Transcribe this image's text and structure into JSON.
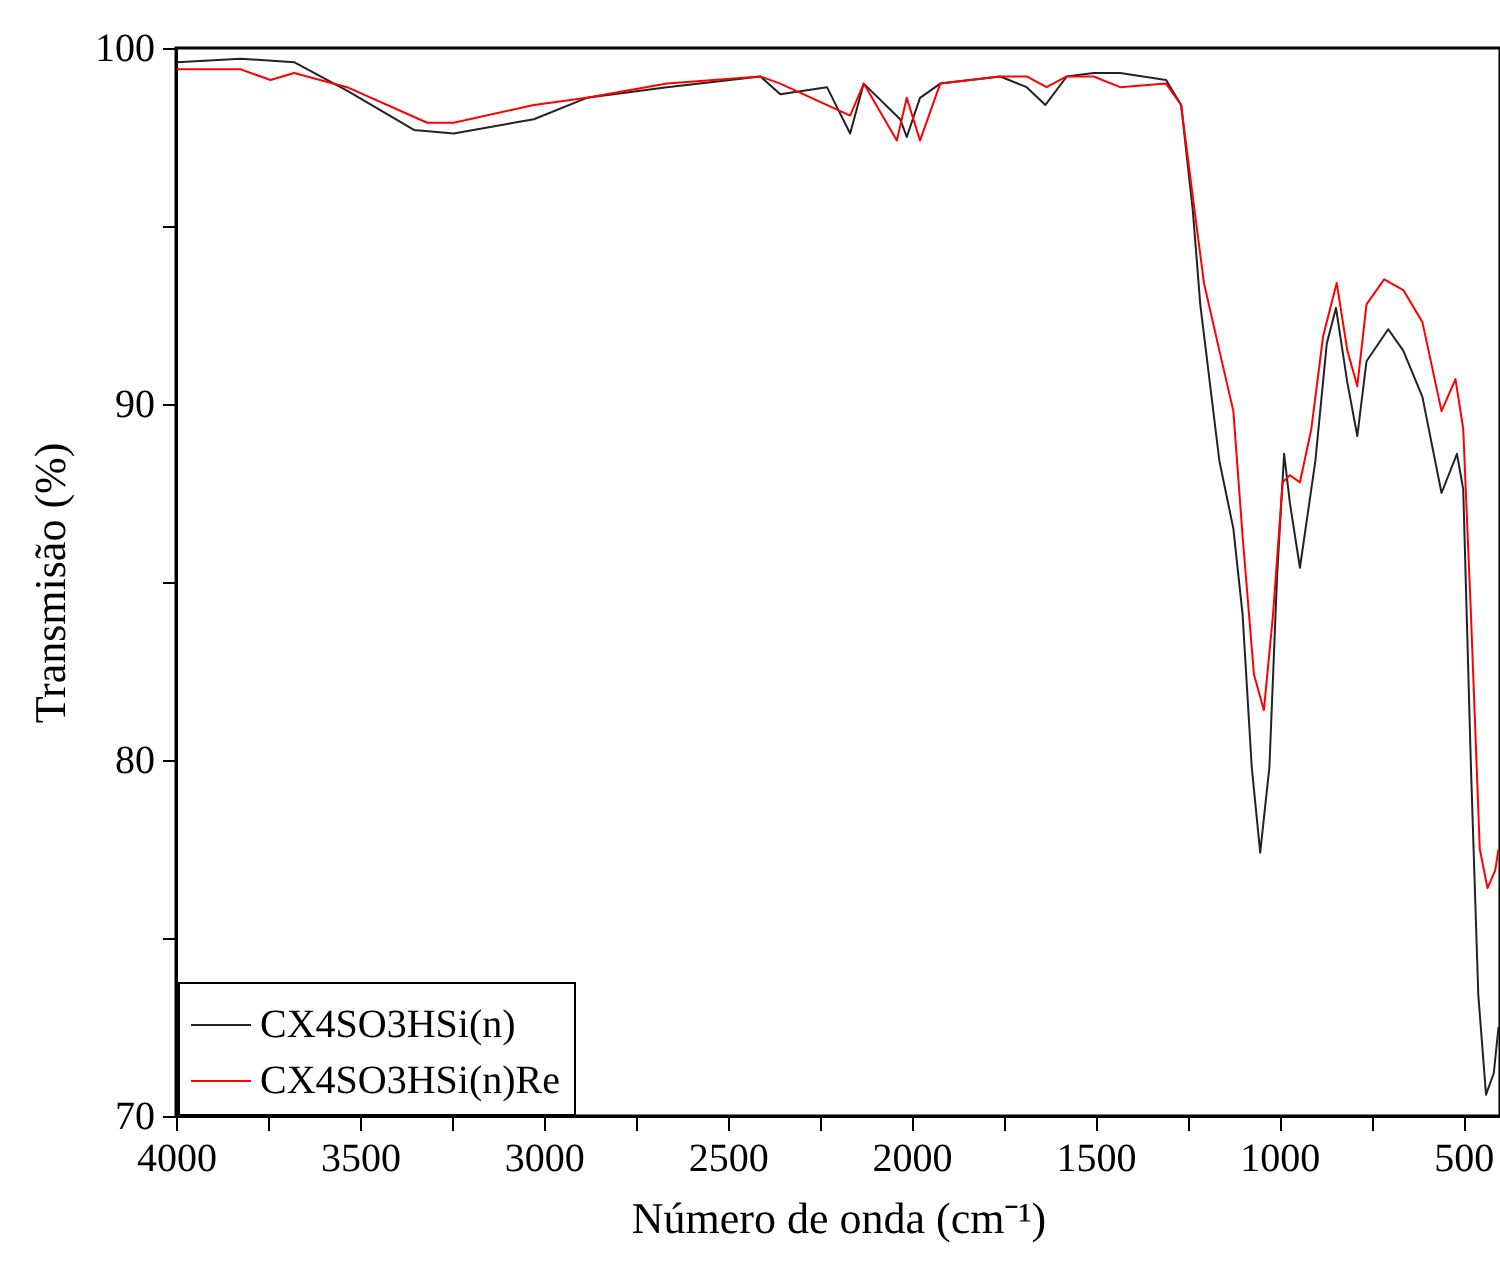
{
  "chart_data": {
    "type": "line",
    "xlabel": "Número de onda (cm⁻¹)",
    "ylabel": "Transmisão (%)",
    "xlim": [
      4000,
      400
    ],
    "ylim": [
      70,
      100
    ],
    "xticks": [
      4000,
      {
        "value": 3750,
        "label": null
      },
      3500,
      {
        "value": 3250,
        "label": null
      },
      3000,
      {
        "value": 2750,
        "label": null
      },
      2500,
      {
        "value": 2250,
        "label": null
      },
      2000,
      {
        "value": 1750,
        "label": null
      },
      1500,
      {
        "value": 1250,
        "label": null
      },
      1000,
      {
        "value": 750,
        "label": null
      },
      500
    ],
    "yticks": [
      70,
      {
        "value": 75,
        "label": null
      },
      80,
      {
        "value": 85,
        "label": null
      },
      90,
      {
        "value": 95,
        "label": null
      },
      100
    ],
    "grid": false,
    "legend": "bottom left",
    "line_style": "solid",
    "marker": "none",
    "series": [
      {
        "name": "CX4SO3HSi(n)",
        "color": "#222222",
        "x": [
          3997,
          3824,
          3679,
          3535,
          3353,
          3245,
          3027,
          2883,
          2665,
          2411,
          2357,
          2230,
          2167,
          2130,
          2031,
          2013,
          1977,
          1922,
          1759,
          1687,
          1636,
          1578,
          1505,
          1433,
          1308,
          1267,
          1235,
          1215,
          1163,
          1125,
          1100,
          1075,
          1052,
          1027,
          1006,
          987,
          971,
          944,
          902,
          871,
          846,
          815,
          788,
          763,
          704,
          663,
          611,
          559,
          517,
          500,
          479,
          459,
          438,
          417,
          404
        ],
        "values": [
          99.6,
          99.7,
          99.6,
          98.8,
          97.7,
          97.6,
          98.0,
          98.6,
          98.9,
          99.2,
          98.7,
          98.9,
          97.6,
          99.0,
          98.0,
          97.5,
          98.6,
          99.0,
          99.2,
          98.9,
          98.4,
          99.2,
          99.3,
          99.3,
          99.1,
          98.4,
          95.4,
          92.8,
          88.4,
          86.5,
          84.1,
          79.8,
          77.4,
          79.8,
          85.2,
          88.6,
          87.2,
          85.4,
          88.4,
          91.7,
          92.7,
          90.6,
          89.1,
          91.2,
          92.1,
          91.5,
          90.2,
          87.5,
          88.6,
          87.6,
          79.8,
          73.4,
          70.6,
          71.2,
          72.5
        ]
      },
      {
        "name": "CX4SO3HSi(n)Re",
        "color": "#ff0000",
        "x": [
          3997,
          3824,
          3743,
          3679,
          3535,
          3317,
          3245,
          3027,
          2883,
          2665,
          2411,
          2357,
          2167,
          2130,
          2040,
          2013,
          1977,
          1922,
          1759,
          1687,
          1633,
          1578,
          1505,
          1433,
          1308,
          1267,
          1235,
          1205,
          1163,
          1125,
          1100,
          1069,
          1042,
          1017,
          991,
          971,
          944,
          913,
          881,
          844,
          815,
          788,
          763,
          715,
          663,
          611,
          559,
          521,
          500,
          479,
          455,
          434,
          413,
          404
        ],
        "values": [
          99.4,
          99.4,
          99.1,
          99.3,
          98.9,
          97.9,
          97.9,
          98.4,
          98.6,
          99.0,
          99.2,
          99.0,
          98.1,
          99.0,
          97.4,
          98.6,
          97.4,
          99.0,
          99.2,
          99.2,
          98.9,
          99.2,
          99.2,
          98.9,
          99.0,
          98.4,
          95.8,
          93.4,
          91.5,
          89.8,
          86.3,
          82.4,
          81.4,
          84.1,
          87.8,
          88.0,
          87.8,
          89.3,
          91.9,
          93.4,
          91.5,
          90.5,
          92.8,
          93.5,
          93.2,
          92.3,
          89.8,
          90.7,
          89.3,
          84.1,
          77.5,
          76.4,
          76.9,
          77.5
        ]
      }
    ]
  }
}
